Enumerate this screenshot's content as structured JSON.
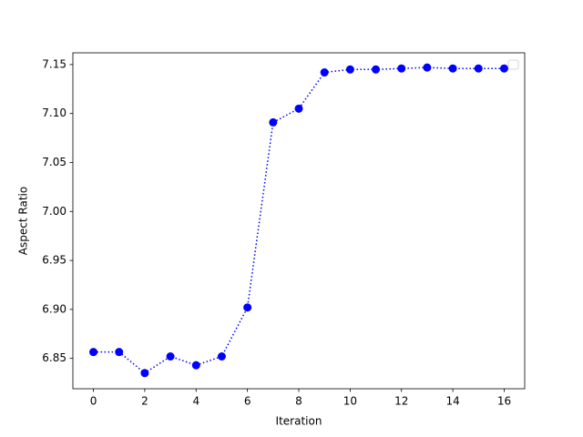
{
  "chart_data": {
    "type": "line",
    "x_label": "Iteration",
    "y_label": "Aspect Ratio",
    "x": [
      0,
      1,
      2,
      3,
      4,
      5,
      6,
      7,
      8,
      9,
      10,
      11,
      12,
      13,
      14,
      15,
      16
    ],
    "series": [
      {
        "color": "#0000ff",
        "values": [
          6.8565,
          6.8565,
          6.835,
          6.852,
          6.843,
          6.852,
          6.902,
          7.091,
          7.105,
          7.142,
          7.145,
          7.145,
          7.146,
          7.147,
          7.146,
          7.146,
          7.146
        ]
      }
    ],
    "xlim": [
      -0.8,
      16.8
    ],
    "xticks": [
      0,
      2,
      4,
      6,
      8,
      10,
      12,
      14,
      16
    ],
    "ylim": [
      6.819,
      7.162
    ],
    "yticks": [
      6.85,
      {
        "value": 6.9,
        "label": "6.90"
      },
      6.95,
      {
        "value": 7.0,
        "label": "7.00"
      },
      7.05,
      {
        "value": 7.1,
        "label": "7.10"
      },
      7.15
    ],
    "line_style": "dotted",
    "marker": "circle",
    "legend": "upper right"
  }
}
